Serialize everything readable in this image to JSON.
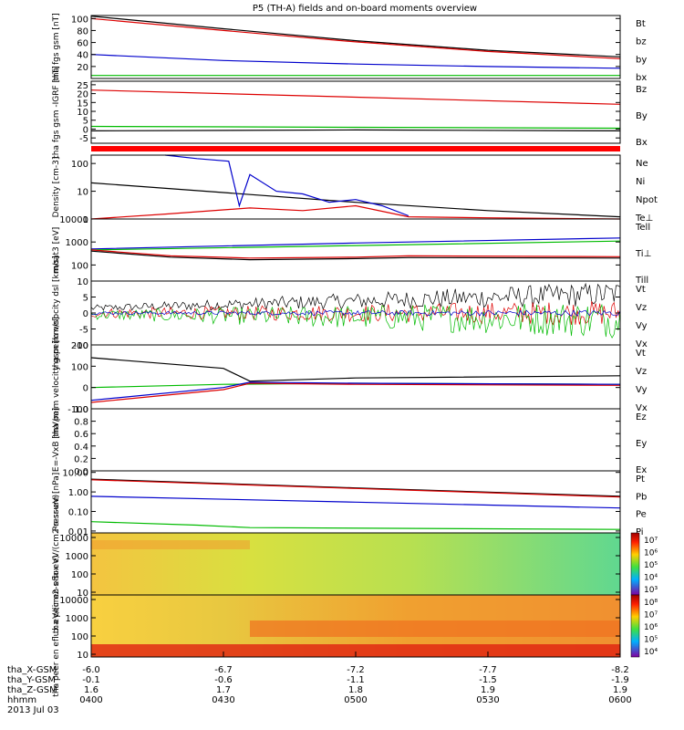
{
  "title": "P5 (TH-A) fields and on-board moments overview",
  "chart_data": [
    {
      "type": "line",
      "ylabel": "tha fgs gsm [nT]",
      "ylim": [
        0,
        105
      ],
      "ticks": [
        "100",
        "80",
        "60",
        "40",
        "20"
      ],
      "tick_values": [
        100,
        80,
        60,
        40,
        20
      ],
      "legend": [
        {
          "name": "Bt",
          "color": "#000000"
        },
        {
          "name": "bz",
          "color": "#dd0000"
        },
        {
          "name": "by",
          "color": "#00bb00"
        },
        {
          "name": "bx",
          "color": "#0000cc"
        }
      ],
      "series": [
        {
          "name": "Bt",
          "color": "#000000",
          "x": [
            0,
            0.25,
            0.5,
            0.75,
            1
          ],
          "y": [
            104,
            83,
            63,
            47,
            36
          ]
        },
        {
          "name": "bz",
          "color": "#dd0000",
          "x": [
            0,
            0.25,
            0.5,
            0.75,
            1
          ],
          "y": [
            100,
            80,
            61,
            45,
            33
          ]
        },
        {
          "name": "by",
          "color": "#00bb00",
          "x": [
            0,
            1
          ],
          "y": [
            5,
            5
          ]
        },
        {
          "name": "bx",
          "color": "#0000cc",
          "x": [
            0,
            0.25,
            0.5,
            0.75,
            1
          ],
          "y": [
            40,
            30,
            24,
            20,
            17
          ]
        }
      ]
    },
    {
      "type": "line",
      "ylabel": "tha fgs gsm -IGRF [nT]",
      "ylim": [
        -8,
        27
      ],
      "ticks": [
        "25",
        "20",
        "15",
        "10",
        "5",
        "0",
        "-5"
      ],
      "tick_values": [
        25,
        20,
        15,
        10,
        5,
        0,
        -5
      ],
      "legend": [
        {
          "name": "Bz",
          "color": "#dd0000"
        },
        {
          "name": "By",
          "color": "#00bb00"
        },
        {
          "name": "Bx",
          "color": "#000000"
        }
      ],
      "series": [
        {
          "name": "Bz",
          "color": "#dd0000",
          "x": [
            0,
            1
          ],
          "y": [
            22,
            14
          ]
        },
        {
          "name": "By",
          "color": "#00bb00",
          "x": [
            0,
            0.5,
            1
          ],
          "y": [
            1.5,
            1,
            0.5
          ]
        },
        {
          "name": "Bx",
          "color": "#000000",
          "x": [
            0,
            0.5,
            1
          ],
          "y": [
            -1,
            -0.5,
            -1
          ]
        }
      ]
    },
    {
      "type": "line",
      "ylabel": "Density [cm-3]",
      "scale": "log",
      "ylim": [
        1,
        200
      ],
      "ticks": [
        "100",
        "10",
        "1"
      ],
      "tick_values": [
        100,
        10,
        1
      ],
      "legend": [
        {
          "name": "Ne",
          "color": "#dd0000"
        },
        {
          "name": "Ni",
          "color": "#000000"
        },
        {
          "name": "Npot",
          "color": "#0000cc"
        },
        {
          "name": "Te⊥",
          "color": "#dd0000"
        }
      ],
      "series": [
        {
          "name": "Ni",
          "color": "#000000",
          "x": [
            0,
            0.25,
            0.5,
            0.75,
            1
          ],
          "y": [
            20,
            9,
            4,
            2,
            1.2
          ]
        },
        {
          "name": "Npot",
          "color": "#0000cc",
          "x": [
            0.14,
            0.2,
            0.26,
            0.28,
            0.3,
            0.35,
            0.4,
            0.45,
            0.5,
            0.55,
            0.6
          ],
          "y": [
            200,
            150,
            120,
            3,
            40,
            10,
            8,
            4,
            5,
            3,
            1.3
          ]
        },
        {
          "name": "Ne",
          "color": "#dd0000",
          "x": [
            0,
            0.14,
            0.3,
            0.4,
            0.5,
            0.6,
            0.75,
            1
          ],
          "y": [
            1,
            1.5,
            2.5,
            2,
            3,
            1.2,
            1.1,
            1
          ]
        }
      ]
    },
    {
      "type": "line",
      "ylabel": "moat3 [eV]",
      "scale": "log",
      "ylim": [
        20,
        10000
      ],
      "ticks": [
        "10000",
        "1000",
        "100"
      ],
      "tick_values": [
        10000,
        1000,
        100
      ],
      "legend": [
        {
          "name": "Tell",
          "color": "#000000"
        },
        {
          "name": "Ti⊥",
          "color": "#dd0000"
        },
        {
          "name": "Till",
          "color": "#00bb00"
        }
      ],
      "series": [
        {
          "name": "Tall_blue",
          "color": "#0000cc",
          "x": [
            0,
            0.5,
            1
          ],
          "y": [
            500,
            900,
            1500
          ]
        },
        {
          "name": "Till",
          "color": "#00bb00",
          "x": [
            0,
            0.5,
            1
          ],
          "y": [
            450,
            700,
            1100
          ]
        },
        {
          "name": "Ti⊥",
          "color": "#dd0000",
          "x": [
            0,
            0.15,
            0.3,
            0.5,
            0.6,
            1
          ],
          "y": [
            450,
            250,
            200,
            220,
            250,
            230
          ]
        },
        {
          "name": "Tell",
          "color": "#000000",
          "x": [
            0,
            0.15,
            0.3,
            0.5,
            0.6,
            1
          ],
          "y": [
            400,
            220,
            170,
            190,
            210,
            200
          ]
        }
      ]
    },
    {
      "type": "line",
      "ylabel": "tha peim velocity dsl [km/s]",
      "ylim": [
        -10,
        10
      ],
      "ticks": [
        "10",
        "5",
        "0",
        "-5",
        "-10"
      ],
      "tick_values": [
        10,
        5,
        0,
        -5,
        -10
      ],
      "legend": [
        {
          "name": "Vt",
          "color": "#000000"
        },
        {
          "name": "Vz",
          "color": "#dd0000"
        },
        {
          "name": "Vy",
          "color": "#00bb00"
        },
        {
          "name": "Vx",
          "color": "#0000cc"
        }
      ],
      "noise": [
        {
          "name": "Vt",
          "color": "#000000",
          "base0": 1.5,
          "base1": 6,
          "amp0": 1,
          "amp1": 4
        },
        {
          "name": "Vz",
          "color": "#dd0000",
          "base0": 0,
          "base1": 0,
          "amp0": 1.5,
          "amp1": 4
        },
        {
          "name": "Vy",
          "color": "#00bb00",
          "base0": -0.5,
          "base1": -2,
          "amp0": 1.5,
          "amp1": 6
        },
        {
          "name": "Vx",
          "color": "#0000cc",
          "base0": 0,
          "base1": 0,
          "amp0": 0.5,
          "amp1": 1
        }
      ]
    },
    {
      "type": "line",
      "ylabel": "tha peim velocity gsm [km/s]",
      "ylim": [
        -100,
        200
      ],
      "ticks": [
        "200",
        "100",
        "0",
        "-100"
      ],
      "tick_values": [
        200,
        100,
        0,
        -100
      ],
      "legend": [
        {
          "name": "Vt",
          "color": "#000000"
        },
        {
          "name": "Vz",
          "color": "#dd0000"
        },
        {
          "name": "Vy",
          "color": "#00bb00"
        },
        {
          "name": "Vx",
          "color": "#0000cc"
        }
      ],
      "series": [
        {
          "name": "Vt",
          "color": "#000000",
          "x": [
            0,
            0.25,
            0.3,
            0.5,
            1
          ],
          "y": [
            140,
            90,
            30,
            45,
            55
          ]
        },
        {
          "name": "Vy",
          "color": "#00bb00",
          "x": [
            0,
            0.25,
            0.5,
            1
          ],
          "y": [
            0,
            15,
            20,
            15
          ]
        },
        {
          "name": "Vz",
          "color": "#dd0000",
          "x": [
            0,
            0.25,
            0.3,
            0.5,
            1
          ],
          "y": [
            -70,
            -10,
            20,
            15,
            10
          ]
        },
        {
          "name": "Vx",
          "color": "#0000cc",
          "x": [
            0,
            0.25,
            0.3,
            0.5,
            1
          ],
          "y": [
            -60,
            0,
            25,
            20,
            15
          ]
        }
      ]
    },
    {
      "type": "line",
      "ylabel": "E=-VxB [mV/m]",
      "ylim": [
        0,
        1
      ],
      "ticks": [
        "1.0",
        "0.8",
        "0.6",
        "0.4",
        "0.2",
        "0.0"
      ],
      "tick_values": [
        1,
        0.8,
        0.6,
        0.4,
        0.2,
        0
      ],
      "legend": [
        {
          "name": "Ez",
          "color": "#dd0000"
        },
        {
          "name": "Ey",
          "color": "#00bb00"
        },
        {
          "name": "Ex",
          "color": "#0000cc"
        }
      ],
      "series": []
    },
    {
      "type": "line",
      "ylabel": "Pressure [nPa]",
      "scale": "log",
      "ylim": [
        0.008,
        12
      ],
      "ticks": [
        "10.00",
        "1.00",
        "0.10",
        "0.01"
      ],
      "tick_values": [
        10,
        1,
        0.1,
        0.01
      ],
      "legend": [
        {
          "name": "Pt",
          "color": "#000000"
        },
        {
          "name": "Pb",
          "color": "#dd0000"
        },
        {
          "name": "Pe",
          "color": "#00bb00"
        },
        {
          "name": "Pi",
          "color": "#0000cc"
        }
      ],
      "series": [
        {
          "name": "Pt",
          "color": "#000000",
          "x": [
            0,
            0.5,
            1
          ],
          "y": [
            4.5,
            1.6,
            0.6
          ]
        },
        {
          "name": "Pb",
          "color": "#dd0000",
          "x": [
            0,
            0.5,
            1
          ],
          "y": [
            4.2,
            1.5,
            0.55
          ]
        },
        {
          "name": "Pi",
          "color": "#0000cc",
          "x": [
            0,
            0.5,
            1
          ],
          "y": [
            0.6,
            0.3,
            0.15
          ]
        },
        {
          "name": "Pe",
          "color": "#00bb00",
          "x": [
            0,
            0.2,
            0.3,
            1
          ],
          "y": [
            0.03,
            0.02,
            0.015,
            0.012
          ]
        }
      ]
    },
    {
      "type": "heatmap",
      "ylabel": "tha peir en eflux eV/(cm2-s-sr-eV)",
      "ticks": [
        "10000",
        "1000",
        "100",
        "10"
      ],
      "tick_values": [
        4,
        3,
        2,
        1
      ],
      "colorbar_ticks": [
        "10⁷",
        "10⁶",
        "10⁵",
        "10⁴",
        "10³"
      ]
    },
    {
      "type": "heatmap",
      "ylabel": "tha peer en eflux eV/(cm2-s-sr-eV)",
      "ticks": [
        "10000",
        "1000",
        "100",
        "10"
      ],
      "tick_values": [
        4,
        3,
        2,
        1
      ],
      "colorbar_ticks": [
        "10⁸",
        "10⁷",
        "10⁶",
        "10⁵",
        "10⁴"
      ]
    }
  ],
  "x_axis": {
    "rows": [
      {
        "label": "tha_X-GSM",
        "values": [
          "-6.0",
          "-6.7",
          "-7.2",
          "-7.7",
          "-8.2"
        ]
      },
      {
        "label": "tha_Y-GSM",
        "values": [
          "-0.1",
          "-0.6",
          "-1.1",
          "-1.5",
          "-1.9"
        ]
      },
      {
        "label": "tha_Z-GSM",
        "values": [
          "1.6",
          "1.7",
          "1.8",
          "1.9",
          "1.9"
        ]
      },
      {
        "label": "hhmm",
        "values": [
          "0400",
          "0430",
          "0500",
          "0530",
          "0600"
        ]
      }
    ],
    "date": "2013 Jul 03"
  }
}
